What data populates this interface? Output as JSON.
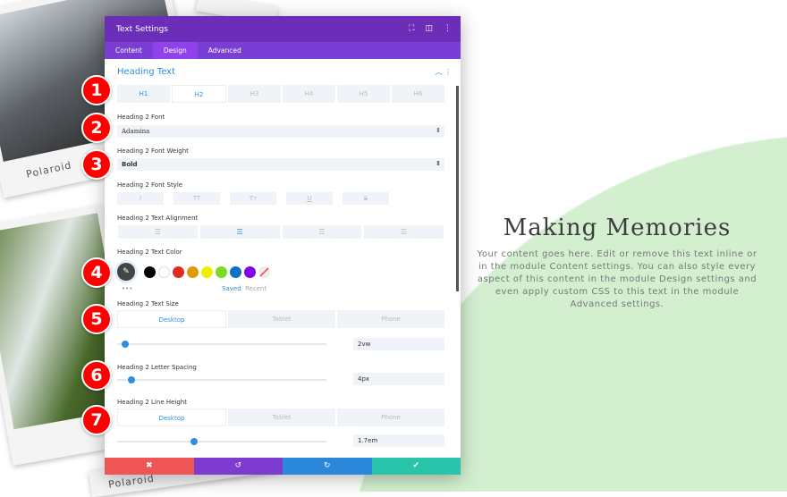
{
  "background": {
    "photo_label_1": "Polaroid",
    "photo_label_2": "Polaroid",
    "heading": "Making Memories",
    "body": "Your content goes here. Edit or remove this text inline or in the module Content settings. You can also style every aspect of this content in the module Design settings and even apply custom CSS to this text in the module Advanced settings."
  },
  "panel": {
    "title": "Text Settings",
    "header_icons": [
      "expand-icon",
      "split-icon",
      "more-icon"
    ],
    "tabs": [
      {
        "label": "Content"
      },
      {
        "label": "Design"
      },
      {
        "label": "Advanced"
      }
    ],
    "section": "Heading Text",
    "heading_levels": [
      "H1",
      "H2",
      "H3",
      "H4",
      "H5",
      "H6"
    ],
    "font_label": "Heading 2 Font",
    "font_value": "Adamina",
    "weight_label": "Heading 2 Font Weight",
    "weight_value": "Bold",
    "style_label": "Heading 2 Font Style",
    "style_buttons": [
      "I",
      "TT",
      "Tт",
      "U",
      "S"
    ],
    "align_label": "Heading 2 Text Alignment",
    "color_label": "Heading 2 Text Color",
    "swatches": [
      "#000000",
      "#ffffff",
      "#e02b20",
      "#e09900",
      "#edf000",
      "#7cda24",
      "#0c71c3",
      "#8300e9"
    ],
    "saved": "Saved",
    "recent": "Recent",
    "dots": "•••",
    "size_label": "Heading 2 Text Size",
    "devices": [
      "Desktop",
      "Tablet",
      "Phone"
    ],
    "size_value": "2vw",
    "size_level": 0.02,
    "spacing_label": "Heading 2 Letter Spacing",
    "spacing_value": "4px",
    "spacing_level": 0.05,
    "lh_label": "Heading 2 Line Height",
    "lh_value": "1.7em",
    "lh_level": 0.35,
    "footer_colors": [
      "#ef5555",
      "#7e3bd0",
      "#2b87da",
      "#29c4a9"
    ]
  },
  "badges": [
    "1",
    "2",
    "3",
    "4",
    "5",
    "6",
    "7"
  ]
}
